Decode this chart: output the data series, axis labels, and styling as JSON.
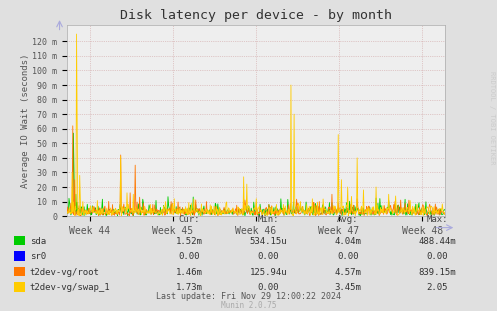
{
  "title": "Disk latency per device - by month",
  "ylabel": "Average IO Wait (seconds)",
  "background_color": "#e0e0e0",
  "plot_background": "#eeeeee",
  "grid_color_h": "#cc9999",
  "grid_color_v": "#cc9999",
  "ytick_labels": [
    "0",
    "10 m",
    "20 m",
    "30 m",
    "40 m",
    "50 m",
    "60 m",
    "70 m",
    "80 m",
    "90 m",
    "100 m",
    "110 m",
    "120 m"
  ],
  "ytick_values": [
    0,
    0.01,
    0.02,
    0.03,
    0.04,
    0.05,
    0.06,
    0.07,
    0.08,
    0.09,
    0.1,
    0.11,
    0.12
  ],
  "week_labels": [
    "Week 44",
    "Week 45",
    "Week 46",
    "Week 47",
    "Week 48"
  ],
  "colors": {
    "sda": "#00cc00",
    "sr0": "#0000ff",
    "root": "#ff7700",
    "swap": "#ffcc00"
  },
  "legend_labels": [
    "sda",
    "sr0",
    "t2dev-vg/root",
    "t2dev-vg/swap_1"
  ],
  "legend_cur": [
    "1.52m",
    "0.00",
    "1.46m",
    "1.73m"
  ],
  "legend_min": [
    "534.15u",
    "0.00",
    "125.94u",
    "0.00"
  ],
  "legend_avg": [
    "4.04m",
    "0.00",
    "4.57m",
    "3.45m"
  ],
  "legend_max": [
    "488.44m",
    "0.00",
    "839.15m",
    "2.05"
  ],
  "rrdtool_watermark": "RRDTOOL / TOBI OETIKER",
  "munin_version": "Munin 2.0.75",
  "last_update": "Last update: Fri Nov 29 12:00:22 2024"
}
